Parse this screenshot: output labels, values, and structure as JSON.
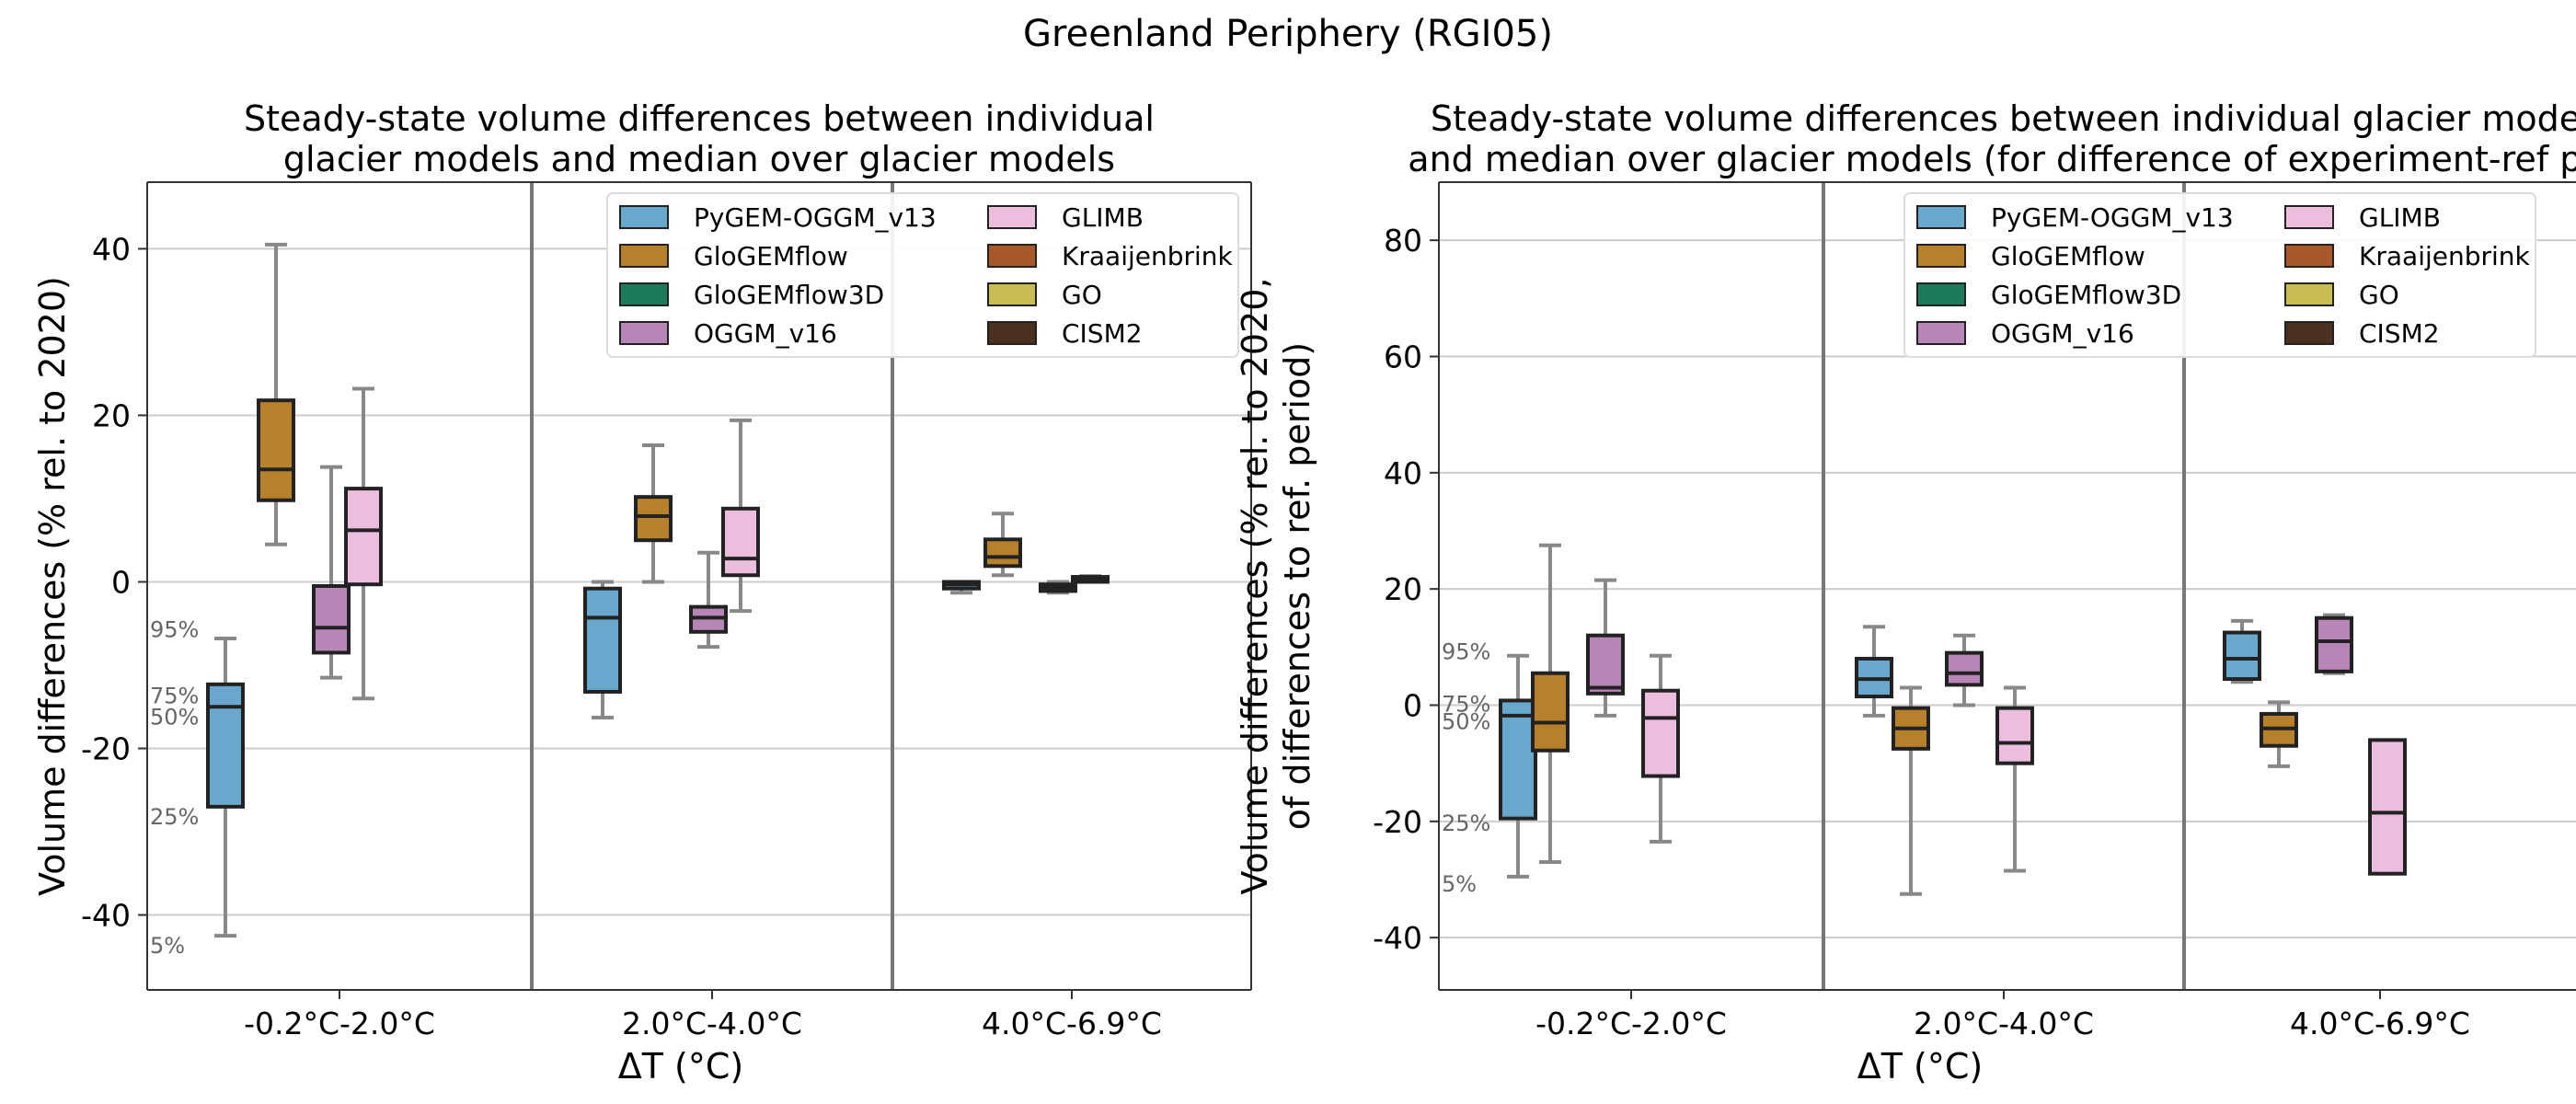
{
  "figure_title": "Greenland Periphery (RGI05)",
  "pct_labels": [
    "95%",
    "75%",
    "50%",
    "25%",
    "5%"
  ],
  "model_colors": {
    "PyGEM-OGGM_v13": "#6aa7cd",
    "GloGEMflow": "#b7802a",
    "GloGEMflow3D": "#1e7a5c",
    "OGGM_v16": "#b886b6",
    "GLIMB": "#ecbddd",
    "Kraaijenbrink": "#a8592c",
    "GO": "#c8bd50",
    "CISM2": "#4b3120"
  },
  "chart_data": [
    {
      "type": "box",
      "title": "Steady-state volume differences between individual\nglacier models and median over glacier models",
      "xlabel": "ΔT (°C)",
      "ylabel": "Volume differences (% rel. to 2020)",
      "ylim": [
        -49,
        48
      ],
      "yticks": [
        -40,
        -20,
        0,
        20,
        40
      ],
      "grid": true,
      "legend_position": "top-right",
      "legend": [
        "PyGEM-OGGM_v13",
        "GloGEMflow",
        "GloGEMflow3D",
        "OGGM_v16",
        "GLIMB",
        "Kraaijenbrink",
        "GO",
        "CISM2"
      ],
      "categories": [
        "-0.2°C-2.0°C",
        "2.0°C-4.0°C",
        "4.0°C-6.9°C"
      ],
      "boxes": [
        {
          "category": 0,
          "model": "PyGEM-OGGM_v13",
          "whislo": -42.5,
          "q1": -27.0,
          "med": -15.0,
          "q3": -12.3,
          "whishi": -6.8
        },
        {
          "category": 0,
          "model": "GloGEMflow",
          "whislo": 4.5,
          "q1": 9.8,
          "med": 13.5,
          "q3": 21.8,
          "whishi": 40.5
        },
        {
          "category": 0,
          "model": "OGGM_v16",
          "whislo": -11.5,
          "q1": -8.5,
          "med": -5.5,
          "q3": -0.5,
          "whishi": 13.8
        },
        {
          "category": 0,
          "model": "GLIMB",
          "whislo": -14.0,
          "q1": -0.3,
          "med": 6.2,
          "q3": 11.2,
          "whishi": 23.2
        },
        {
          "category": 1,
          "model": "PyGEM-OGGM_v13",
          "whislo": -16.3,
          "q1": -13.2,
          "med": -4.3,
          "q3": -0.8,
          "whishi": 0.0
        },
        {
          "category": 1,
          "model": "GloGEMflow",
          "whislo": 0.0,
          "q1": 5.0,
          "med": 7.9,
          "q3": 10.2,
          "whishi": 16.4
        },
        {
          "category": 1,
          "model": "OGGM_v16",
          "whislo": -7.8,
          "q1": -6.0,
          "med": -4.3,
          "q3": -3.0,
          "whishi": 3.5
        },
        {
          "category": 1,
          "model": "GLIMB",
          "whislo": -3.5,
          "q1": 0.8,
          "med": 2.8,
          "q3": 8.8,
          "whishi": 19.4
        },
        {
          "category": 2,
          "model": "PyGEM-OGGM_v13",
          "whislo": -1.3,
          "q1": -0.8,
          "med": -0.3,
          "q3": 0.0,
          "whishi": 0.0
        },
        {
          "category": 2,
          "model": "GloGEMflow",
          "whislo": 0.8,
          "q1": 1.9,
          "med": 3.0,
          "q3": 5.1,
          "whishi": 8.2
        },
        {
          "category": 2,
          "model": "OGGM_v16",
          "whislo": -1.3,
          "q1": -1.1,
          "med": -0.7,
          "q3": -0.3,
          "whishi": 0.0
        },
        {
          "category": 2,
          "model": "GLIMB",
          "whislo": 0.0,
          "q1": 0.0,
          "med": 0.3,
          "q3": 0.6,
          "whishi": 0.7
        }
      ],
      "percentile_guide_values": {
        "95%": -5.5,
        "75%": -13.5,
        "50%": -16.0,
        "25%": -28.0,
        "5%": -43.5
      }
    },
    {
      "type": "box",
      "title": "Steady-state volume differences between individual glacier mode\nand median over glacier models (for difference of experiment-ref pe",
      "xlabel": "ΔT (°C)",
      "ylabel": "Volume differences (% rel. to 2020,\nof differences to ref. period)",
      "ylim": [
        -49,
        90
      ],
      "yticks": [
        -40,
        -20,
        0,
        20,
        40,
        60,
        80
      ],
      "grid": true,
      "legend_position": "top-right",
      "legend": [
        "PyGEM-OGGM_v13",
        "GloGEMflow",
        "GloGEMflow3D",
        "OGGM_v16",
        "GLIMB",
        "Kraaijenbrink",
        "GO",
        "CISM2"
      ],
      "categories": [
        "-0.2°C-2.0°C",
        "2.0°C-4.0°C",
        "4.0°C-6.9°C"
      ],
      "boxes": [
        {
          "category": 0,
          "model": "PyGEM-OGGM_v13",
          "whislo": -29.5,
          "q1": -19.5,
          "med": -1.8,
          "q3": 0.8,
          "whishi": 8.5
        },
        {
          "category": 0,
          "model": "GloGEMflow",
          "whislo": -27.0,
          "q1": -7.8,
          "med": -3.0,
          "q3": 5.5,
          "whishi": 27.5
        },
        {
          "category": 0,
          "model": "OGGM_v16",
          "whislo": -1.8,
          "q1": 2.0,
          "med": 3.0,
          "q3": 12.0,
          "whishi": 21.5
        },
        {
          "category": 0,
          "model": "GLIMB",
          "whislo": -23.5,
          "q1": -12.2,
          "med": -2.2,
          "q3": 2.5,
          "whishi": 8.5
        },
        {
          "category": 1,
          "model": "PyGEM-OGGM_v13",
          "whislo": -1.8,
          "q1": 1.5,
          "med": 4.5,
          "q3": 8.0,
          "whishi": 13.5
        },
        {
          "category": 1,
          "model": "GloGEMflow",
          "whislo": -32.5,
          "q1": -7.5,
          "med": -4.0,
          "q3": -0.5,
          "whishi": 3.0
        },
        {
          "category": 1,
          "model": "OGGM_v16",
          "whislo": 0.0,
          "q1": 3.5,
          "med": 5.5,
          "q3": 9.0,
          "whishi": 12.0
        },
        {
          "category": 1,
          "model": "GLIMB",
          "whislo": -28.5,
          "q1": -10.0,
          "med": -6.5,
          "q3": -0.5,
          "whishi": 3.0
        },
        {
          "category": 2,
          "model": "PyGEM-OGGM_v13",
          "whislo": 4.0,
          "q1": 4.5,
          "med": 8.0,
          "q3": 12.5,
          "whishi": 14.5
        },
        {
          "category": 2,
          "model": "GloGEMflow",
          "whislo": -10.5,
          "q1": -7.0,
          "med": -4.0,
          "q3": -1.5,
          "whishi": 0.5
        },
        {
          "category": 2,
          "model": "OGGM_v16",
          "whislo": 5.5,
          "q1": 5.8,
          "med": 11.0,
          "q3": 15.0,
          "whishi": 15.5
        },
        {
          "category": 2,
          "model": "GLIMB",
          "whislo": -29.0,
          "q1": -29.0,
          "med": -18.5,
          "q3": -6.0,
          "whishi": -6.0
        }
      ],
      "percentile_guide_values": {
        "95%": 9.5,
        "75%": 0.5,
        "50%": -2.5,
        "25%": -20.0,
        "5%": -30.5
      }
    }
  ]
}
